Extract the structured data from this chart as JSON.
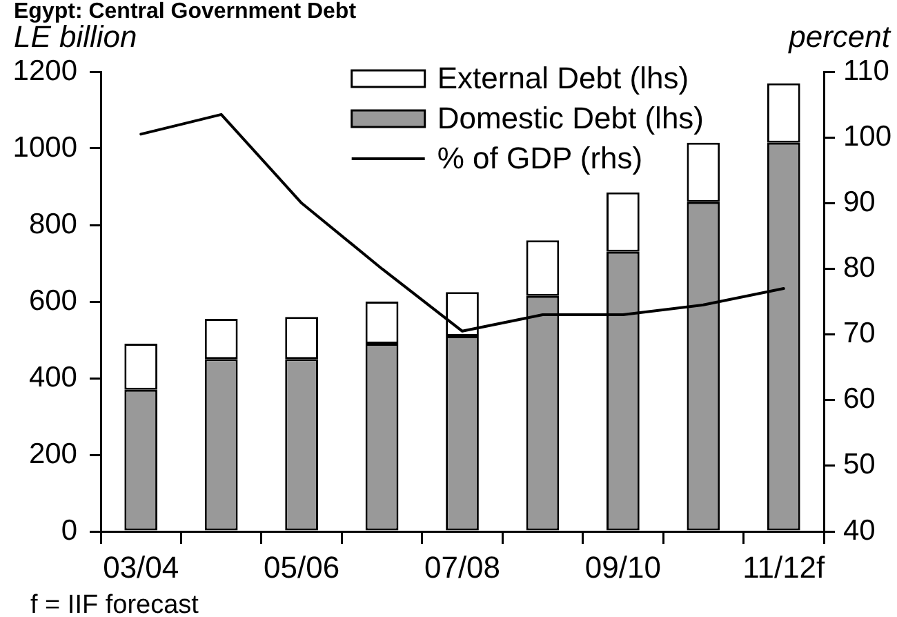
{
  "chart_data": {
    "type": "bar",
    "title": "Egypt: Central Government Debt",
    "ylabel": "LE billion",
    "y2label": "percent",
    "categories": [
      "03/04",
      null,
      "05/06",
      null,
      "07/08",
      null,
      "09/10",
      null,
      "11/12f"
    ],
    "series": [
      {
        "name": "Domestic Debt (lhs)",
        "color": "#999999",
        "values": [
          370,
          450,
          450,
          490,
          510,
          615,
          730,
          860,
          1015
        ]
      },
      {
        "name": "External Debt (lhs)",
        "color": "#ffffff",
        "values": [
          120,
          105,
          110,
          110,
          115,
          145,
          155,
          155,
          155
        ]
      },
      {
        "name": "% of GDP (rhs)",
        "type": "line",
        "axis": "y2",
        "color": "#000000",
        "values": [
          100.5,
          103.5,
          90,
          80,
          70.5,
          73,
          73,
          74.5,
          77
        ]
      }
    ],
    "stacked": true,
    "ylim": [
      0,
      1200
    ],
    "yticks": [
      0,
      200,
      400,
      600,
      800,
      1000,
      1200
    ],
    "y2lim": [
      40,
      110
    ],
    "y2ticks": [
      40,
      50,
      60,
      70,
      80,
      90,
      100,
      110
    ],
    "legend": "top right",
    "grid": false,
    "annotations": [
      "f = IIF forecast"
    ]
  }
}
